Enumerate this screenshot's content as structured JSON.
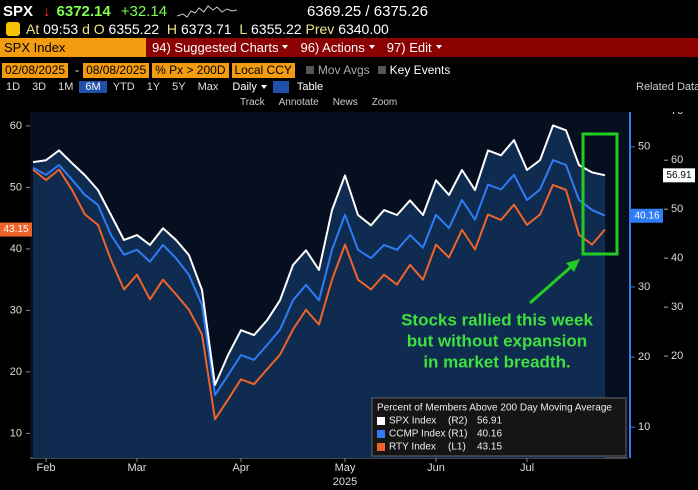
{
  "header": {
    "ticker": "SPX",
    "arrow": "↓",
    "last": "6372.14",
    "change": "+32.14",
    "bid_ask": "6369.25 / 6375.26",
    "time_prefix": "At",
    "time": "09:53",
    "d": "d",
    "o_label": "O",
    "open": "6355.22",
    "h_label": "H",
    "high": "6373.71",
    "l_label": "L",
    "low": "6355.22",
    "prev_label": "Prev",
    "prev": "6340.00"
  },
  "menu": {
    "security": "SPX Index",
    "items": [
      "94) Suggested Charts",
      "96) Actions",
      "97) Edit"
    ]
  },
  "controls": {
    "start": "02/08/2025",
    "sep": "-",
    "end": "08/08/2025",
    "field": "% Px > 200D",
    "currency": "Local CCY",
    "options": [
      "Mov Avgs",
      "Key Events"
    ]
  },
  "periods": [
    "1D",
    "3D",
    "1M",
    "6M",
    "YTD",
    "1Y",
    "5Y",
    "Max"
  ],
  "frequency": "Daily",
  "table": "Table",
  "related": "Related Data",
  "tools": [
    "Track",
    "Annotate",
    "News",
    "Zoom"
  ],
  "chart_data": {
    "type": "line",
    "categories": [
      null,
      "Feb",
      null,
      null,
      null,
      null,
      null,
      null,
      "Mar",
      null,
      null,
      null,
      null,
      null,
      null,
      null,
      "Apr",
      null,
      null,
      null,
      null,
      null,
      null,
      null,
      "May",
      null,
      null,
      null,
      null,
      null,
      null,
      "Jun",
      null,
      null,
      null,
      null,
      null,
      null,
      "Jul",
      null,
      null,
      null,
      null,
      null,
      null
    ],
    "x_year_label": "2025",
    "ylim": [
      6,
      64.7
    ],
    "yticks": [
      10,
      20,
      30,
      40,
      50,
      60
    ],
    "y2lim": [
      5.6,
      57.1
    ],
    "y2ticks": [
      10,
      20,
      30,
      40,
      50
    ],
    "y3lim": [
      -0.8,
      72.9
    ],
    "y3ticks": [
      20,
      30,
      40,
      50,
      60,
      70
    ],
    "legend_title": "Percent of Members Above 200 Day Moving Average",
    "legend": "lower right",
    "series": [
      {
        "name": "SPX Index",
        "axis_tag": "(R2)",
        "axis": "y3",
        "color": "#ffffff",
        "values": [
          59.6,
          60.0,
          62.0,
          59.4,
          56.9,
          53.9,
          48.8,
          43.7,
          44.7,
          42.7,
          46.1,
          43.7,
          40.6,
          33.5,
          14.1,
          20.2,
          25.3,
          24.3,
          27.3,
          31.4,
          38.6,
          41.6,
          37.6,
          49.8,
          56.9,
          48.8,
          46.7,
          49.8,
          48.8,
          51.8,
          48.8,
          55.9,
          52.9,
          58.0,
          53.9,
          62.0,
          61.0,
          64.1,
          58.0,
          60.0,
          67.1,
          66.1,
          59.0,
          57.5,
          56.91
        ]
      },
      {
        "name": "CCMP Index",
        "axis_tag": "(R1)",
        "axis": "y2",
        "color": "#2f7cf6",
        "values": [
          47.0,
          46.0,
          47.4,
          45.3,
          43.1,
          41.7,
          37.4,
          34.6,
          35.3,
          33.6,
          36.0,
          34.1,
          31.7,
          27.4,
          14.6,
          17.4,
          20.3,
          19.6,
          21.7,
          23.9,
          28.1,
          30.3,
          28.1,
          35.3,
          40.3,
          35.3,
          34.1,
          36.0,
          35.3,
          37.4,
          35.6,
          40.3,
          38.4,
          42.4,
          39.6,
          44.6,
          43.9,
          46.0,
          42.4,
          43.9,
          48.1,
          47.4,
          42.4,
          41.0,
          40.16
        ]
      },
      {
        "name": "RTY Index",
        "axis_tag": "(L1)",
        "axis": "y",
        "color": "#f0642a",
        "values": [
          52.9,
          51.2,
          52.9,
          49.6,
          45.6,
          43.9,
          38.2,
          33.4,
          35.8,
          31.8,
          35.0,
          32.6,
          30.1,
          26.1,
          12.3,
          15.5,
          18.8,
          18.0,
          20.4,
          22.8,
          26.9,
          30.1,
          27.7,
          35.0,
          40.7,
          35.0,
          33.4,
          35.8,
          34.2,
          37.4,
          35.0,
          40.7,
          38.6,
          43.1,
          39.9,
          45.6,
          44.7,
          47.2,
          43.9,
          45.6,
          50.4,
          49.6,
          42.3,
          40.7,
          43.15
        ]
      }
    ],
    "annotation": [
      "Stocks rallied this week",
      "but without expansion",
      "in market breadth."
    ],
    "annotation_color": "#3ee03e"
  }
}
